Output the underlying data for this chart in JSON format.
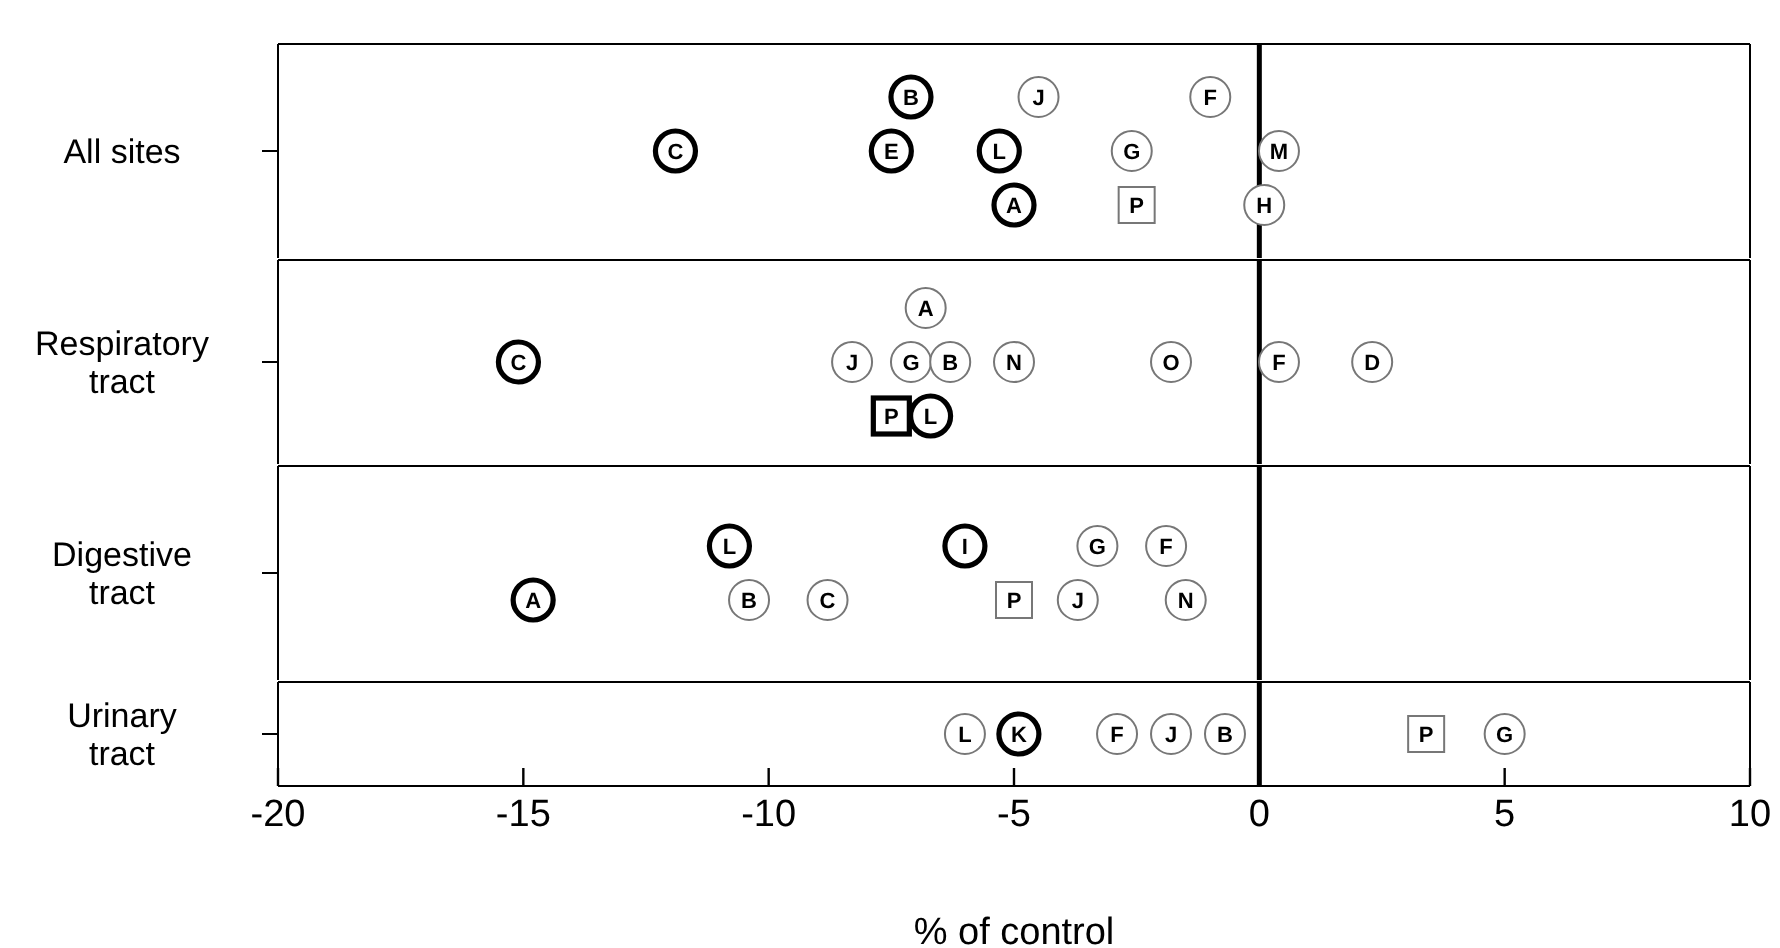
{
  "chart_data": [
    {
      "type": "scatter",
      "orientation": "horizontal",
      "categories": [
        "All sites"
      ],
      "xlim": [
        -20,
        10
      ],
      "tick_labels": "y",
      "ref_lines": [
        {
          "axis": "x",
          "value": 0,
          "color": "#000000"
        }
      ],
      "series": [
        {
          "color": "#000000",
          "marker": "circle",
          "values": [
            -7.1
          ],
          "value_labels": [
            "B"
          ]
        },
        {
          "color": "#777777",
          "marker": "circle",
          "values": [
            -4.5
          ],
          "value_labels": [
            "J"
          ]
        },
        {
          "color": "#777777",
          "marker": "circle",
          "values": [
            -1.0
          ],
          "value_labels": [
            "F"
          ]
        },
        {
          "color": "#000000",
          "marker": "circle",
          "values": [
            -11.9
          ],
          "value_labels": [
            "C"
          ]
        },
        {
          "color": "#000000",
          "marker": "circle",
          "values": [
            -7.5
          ],
          "value_labels": [
            "E"
          ]
        },
        {
          "color": "#000000",
          "marker": "circle",
          "values": [
            -5.3
          ],
          "value_labels": [
            "L"
          ]
        },
        {
          "color": "#777777",
          "marker": "circle",
          "values": [
            -2.6
          ],
          "value_labels": [
            "G"
          ]
        },
        {
          "color": "#777777",
          "marker": "circle",
          "values": [
            0.4
          ],
          "value_labels": [
            "M"
          ]
        },
        {
          "color": "#000000",
          "marker": "circle",
          "values": [
            -5.0
          ],
          "value_labels": [
            "A"
          ]
        },
        {
          "color": "#777777",
          "marker": "square",
          "values": [
            -2.5
          ],
          "value_labels": [
            "P"
          ]
        },
        {
          "color": "#777777",
          "marker": "circle",
          "values": [
            0.1
          ],
          "value_labels": [
            "H"
          ]
        }
      ]
    },
    {
      "type": "scatter",
      "orientation": "horizontal",
      "categories": [
        "Respiratory tract"
      ],
      "xlim": [
        -20,
        10
      ],
      "tick_labels": "y",
      "ref_lines": [
        {
          "axis": "x",
          "value": 0,
          "color": "#000000"
        }
      ],
      "series": [
        {
          "color": "#777777",
          "marker": "circle",
          "values": [
            -6.8
          ],
          "value_labels": [
            "A"
          ]
        },
        {
          "color": "#000000",
          "marker": "circle",
          "values": [
            -15.1
          ],
          "value_labels": [
            "C"
          ]
        },
        {
          "color": "#777777",
          "marker": "circle",
          "values": [
            -8.3
          ],
          "value_labels": [
            "J"
          ]
        },
        {
          "color": "#777777",
          "marker": "circle",
          "values": [
            -7.1
          ],
          "value_labels": [
            "G"
          ]
        },
        {
          "color": "#777777",
          "marker": "circle",
          "values": [
            -6.3
          ],
          "value_labels": [
            "B"
          ]
        },
        {
          "color": "#777777",
          "marker": "circle",
          "values": [
            -5.0
          ],
          "value_labels": [
            "N"
          ]
        },
        {
          "color": "#777777",
          "marker": "circle",
          "values": [
            -1.8
          ],
          "value_labels": [
            "O"
          ]
        },
        {
          "color": "#777777",
          "marker": "circle",
          "values": [
            0.4
          ],
          "value_labels": [
            "F"
          ]
        },
        {
          "color": "#777777",
          "marker": "circle",
          "values": [
            2.3
          ],
          "value_labels": [
            "D"
          ]
        },
        {
          "color": "#000000",
          "marker": "square",
          "values": [
            -7.5
          ],
          "value_labels": [
            "P"
          ]
        },
        {
          "color": "#000000",
          "marker": "circle",
          "values": [
            -6.7
          ],
          "value_labels": [
            "L"
          ]
        }
      ]
    },
    {
      "type": "scatter",
      "orientation": "horizontal",
      "categories": [
        "Digestive tract"
      ],
      "xlim": [
        -20,
        10
      ],
      "tick_labels": "y",
      "ref_lines": [
        {
          "axis": "x",
          "value": 0,
          "color": "#000000"
        }
      ],
      "series": [
        {
          "color": "#000000",
          "marker": "circle",
          "values": [
            -10.8
          ],
          "value_labels": [
            "L"
          ]
        },
        {
          "color": "#000000",
          "marker": "circle",
          "values": [
            -6.0
          ],
          "value_labels": [
            "I"
          ]
        },
        {
          "color": "#777777",
          "marker": "circle",
          "values": [
            -3.3
          ],
          "value_labels": [
            "G"
          ]
        },
        {
          "color": "#777777",
          "marker": "circle",
          "values": [
            -1.9
          ],
          "value_labels": [
            "F"
          ]
        },
        {
          "color": "#000000",
          "marker": "circle",
          "values": [
            -14.8
          ],
          "value_labels": [
            "A"
          ]
        },
        {
          "color": "#777777",
          "marker": "circle",
          "values": [
            -10.4
          ],
          "value_labels": [
            "B"
          ]
        },
        {
          "color": "#777777",
          "marker": "circle",
          "values": [
            -8.8
          ],
          "value_labels": [
            "C"
          ]
        },
        {
          "color": "#777777",
          "marker": "square",
          "values": [
            -5.0
          ],
          "value_labels": [
            "P"
          ]
        },
        {
          "color": "#777777",
          "marker": "circle",
          "values": [
            -3.7
          ],
          "value_labels": [
            "J"
          ]
        },
        {
          "color": "#777777",
          "marker": "circle",
          "values": [
            -1.5
          ],
          "value_labels": [
            "N"
          ]
        }
      ]
    },
    {
      "type": "scatter",
      "orientation": "horizontal",
      "categories": [
        "Urinary tract"
      ],
      "xlim": [
        -20,
        10
      ],
      "xlabel": "% of control",
      "xticks": [
        -20,
        -15,
        -10,
        -5,
        0,
        5,
        10
      ],
      "ref_lines": [
        {
          "axis": "x",
          "value": 0,
          "color": "#000000"
        }
      ],
      "series": [
        {
          "color": "#777777",
          "marker": "circle",
          "values": [
            -6.0
          ],
          "value_labels": [
            "L"
          ]
        },
        {
          "color": "#000000",
          "marker": "circle",
          "values": [
            -4.9
          ],
          "value_labels": [
            "K"
          ]
        },
        {
          "color": "#777777",
          "marker": "circle",
          "values": [
            -2.9
          ],
          "value_labels": [
            "F"
          ]
        },
        {
          "color": "#777777",
          "marker": "circle",
          "values": [
            -1.8
          ],
          "value_labels": [
            "J"
          ]
        },
        {
          "color": "#777777",
          "marker": "circle",
          "values": [
            -0.7
          ],
          "value_labels": [
            "B"
          ]
        },
        {
          "color": "#777777",
          "marker": "square",
          "values": [
            3.4
          ],
          "value_labels": [
            "P"
          ]
        },
        {
          "color": "#777777",
          "marker": "circle",
          "values": [
            5.0
          ],
          "value_labels": [
            "G"
          ]
        }
      ]
    }
  ]
}
